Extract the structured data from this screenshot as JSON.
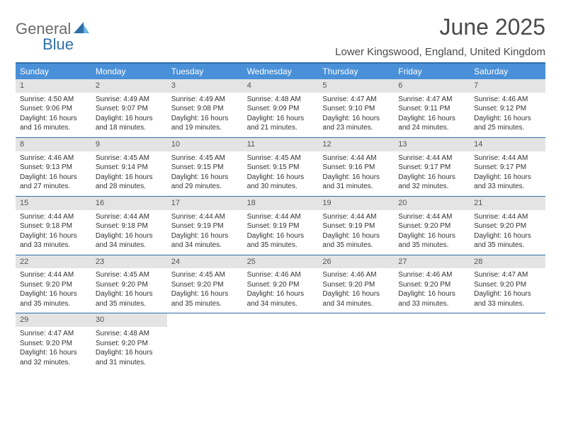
{
  "logo": {
    "part1": "General",
    "part2": "Blue"
  },
  "title": "June 2025",
  "location": "Lower Kingswood, England, United Kingdom",
  "colors": {
    "header_bg": "#4a90d9",
    "border": "#2f6fa8",
    "daynum_bg": "#e4e4e4",
    "text": "#333333",
    "logo_gray": "#6a6a6a",
    "logo_blue": "#2f6fa8"
  },
  "day_headers": [
    "Sunday",
    "Monday",
    "Tuesday",
    "Wednesday",
    "Thursday",
    "Friday",
    "Saturday"
  ],
  "weeks": [
    [
      {
        "n": "1",
        "sunrise": "Sunrise: 4:50 AM",
        "sunset": "Sunset: 9:06 PM",
        "day1": "Daylight: 16 hours",
        "day2": "and 16 minutes."
      },
      {
        "n": "2",
        "sunrise": "Sunrise: 4:49 AM",
        "sunset": "Sunset: 9:07 PM",
        "day1": "Daylight: 16 hours",
        "day2": "and 18 minutes."
      },
      {
        "n": "3",
        "sunrise": "Sunrise: 4:49 AM",
        "sunset": "Sunset: 9:08 PM",
        "day1": "Daylight: 16 hours",
        "day2": "and 19 minutes."
      },
      {
        "n": "4",
        "sunrise": "Sunrise: 4:48 AM",
        "sunset": "Sunset: 9:09 PM",
        "day1": "Daylight: 16 hours",
        "day2": "and 21 minutes."
      },
      {
        "n": "5",
        "sunrise": "Sunrise: 4:47 AM",
        "sunset": "Sunset: 9:10 PM",
        "day1": "Daylight: 16 hours",
        "day2": "and 23 minutes."
      },
      {
        "n": "6",
        "sunrise": "Sunrise: 4:47 AM",
        "sunset": "Sunset: 9:11 PM",
        "day1": "Daylight: 16 hours",
        "day2": "and 24 minutes."
      },
      {
        "n": "7",
        "sunrise": "Sunrise: 4:46 AM",
        "sunset": "Sunset: 9:12 PM",
        "day1": "Daylight: 16 hours",
        "day2": "and 25 minutes."
      }
    ],
    [
      {
        "n": "8",
        "sunrise": "Sunrise: 4:46 AM",
        "sunset": "Sunset: 9:13 PM",
        "day1": "Daylight: 16 hours",
        "day2": "and 27 minutes."
      },
      {
        "n": "9",
        "sunrise": "Sunrise: 4:45 AM",
        "sunset": "Sunset: 9:14 PM",
        "day1": "Daylight: 16 hours",
        "day2": "and 28 minutes."
      },
      {
        "n": "10",
        "sunrise": "Sunrise: 4:45 AM",
        "sunset": "Sunset: 9:15 PM",
        "day1": "Daylight: 16 hours",
        "day2": "and 29 minutes."
      },
      {
        "n": "11",
        "sunrise": "Sunrise: 4:45 AM",
        "sunset": "Sunset: 9:15 PM",
        "day1": "Daylight: 16 hours",
        "day2": "and 30 minutes."
      },
      {
        "n": "12",
        "sunrise": "Sunrise: 4:44 AM",
        "sunset": "Sunset: 9:16 PM",
        "day1": "Daylight: 16 hours",
        "day2": "and 31 minutes."
      },
      {
        "n": "13",
        "sunrise": "Sunrise: 4:44 AM",
        "sunset": "Sunset: 9:17 PM",
        "day1": "Daylight: 16 hours",
        "day2": "and 32 minutes."
      },
      {
        "n": "14",
        "sunrise": "Sunrise: 4:44 AM",
        "sunset": "Sunset: 9:17 PM",
        "day1": "Daylight: 16 hours",
        "day2": "and 33 minutes."
      }
    ],
    [
      {
        "n": "15",
        "sunrise": "Sunrise: 4:44 AM",
        "sunset": "Sunset: 9:18 PM",
        "day1": "Daylight: 16 hours",
        "day2": "and 33 minutes."
      },
      {
        "n": "16",
        "sunrise": "Sunrise: 4:44 AM",
        "sunset": "Sunset: 9:18 PM",
        "day1": "Daylight: 16 hours",
        "day2": "and 34 minutes."
      },
      {
        "n": "17",
        "sunrise": "Sunrise: 4:44 AM",
        "sunset": "Sunset: 9:19 PM",
        "day1": "Daylight: 16 hours",
        "day2": "and 34 minutes."
      },
      {
        "n": "18",
        "sunrise": "Sunrise: 4:44 AM",
        "sunset": "Sunset: 9:19 PM",
        "day1": "Daylight: 16 hours",
        "day2": "and 35 minutes."
      },
      {
        "n": "19",
        "sunrise": "Sunrise: 4:44 AM",
        "sunset": "Sunset: 9:19 PM",
        "day1": "Daylight: 16 hours",
        "day2": "and 35 minutes."
      },
      {
        "n": "20",
        "sunrise": "Sunrise: 4:44 AM",
        "sunset": "Sunset: 9:20 PM",
        "day1": "Daylight: 16 hours",
        "day2": "and 35 minutes."
      },
      {
        "n": "21",
        "sunrise": "Sunrise: 4:44 AM",
        "sunset": "Sunset: 9:20 PM",
        "day1": "Daylight: 16 hours",
        "day2": "and 35 minutes."
      }
    ],
    [
      {
        "n": "22",
        "sunrise": "Sunrise: 4:44 AM",
        "sunset": "Sunset: 9:20 PM",
        "day1": "Daylight: 16 hours",
        "day2": "and 35 minutes."
      },
      {
        "n": "23",
        "sunrise": "Sunrise: 4:45 AM",
        "sunset": "Sunset: 9:20 PM",
        "day1": "Daylight: 16 hours",
        "day2": "and 35 minutes."
      },
      {
        "n": "24",
        "sunrise": "Sunrise: 4:45 AM",
        "sunset": "Sunset: 9:20 PM",
        "day1": "Daylight: 16 hours",
        "day2": "and 35 minutes."
      },
      {
        "n": "25",
        "sunrise": "Sunrise: 4:46 AM",
        "sunset": "Sunset: 9:20 PM",
        "day1": "Daylight: 16 hours",
        "day2": "and 34 minutes."
      },
      {
        "n": "26",
        "sunrise": "Sunrise: 4:46 AM",
        "sunset": "Sunset: 9:20 PM",
        "day1": "Daylight: 16 hours",
        "day2": "and 34 minutes."
      },
      {
        "n": "27",
        "sunrise": "Sunrise: 4:46 AM",
        "sunset": "Sunset: 9:20 PM",
        "day1": "Daylight: 16 hours",
        "day2": "and 33 minutes."
      },
      {
        "n": "28",
        "sunrise": "Sunrise: 4:47 AM",
        "sunset": "Sunset: 9:20 PM",
        "day1": "Daylight: 16 hours",
        "day2": "and 33 minutes."
      }
    ],
    [
      {
        "n": "29",
        "sunrise": "Sunrise: 4:47 AM",
        "sunset": "Sunset: 9:20 PM",
        "day1": "Daylight: 16 hours",
        "day2": "and 32 minutes."
      },
      {
        "n": "30",
        "sunrise": "Sunrise: 4:48 AM",
        "sunset": "Sunset: 9:20 PM",
        "day1": "Daylight: 16 hours",
        "day2": "and 31 minutes."
      },
      null,
      null,
      null,
      null,
      null
    ]
  ]
}
